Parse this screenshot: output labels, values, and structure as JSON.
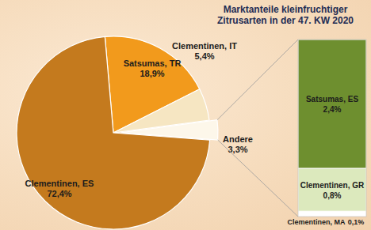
{
  "chart_data": [
    {
      "type": "pie",
      "title": "Marktanteile kleinfruchtiger Zitrusarten in der 47. KW 2020",
      "categories": [
        "Clementinen, ES",
        "Satsumas, TR",
        "Clementinen, IT",
        "Andere"
      ],
      "values": [
        72.4,
        18.9,
        5.4,
        3.3
      ],
      "value_labels": [
        "72,4%",
        "18,9%",
        "5,4%",
        "3,3%"
      ],
      "colors": [
        "#c47a1e",
        "#f29a1c",
        "#f6e6c2",
        "#fdf7ea"
      ],
      "data_labels": true
    },
    {
      "type": "bar",
      "stacked": true,
      "ylim": [
        0,
        3.3
      ],
      "tick_labels": false,
      "data_labels": true,
      "series": [
        {
          "name": "Satsumas, ES",
          "color": "#6e8f2f",
          "values": [
            2.4
          ],
          "value_labels": [
            "2,4%"
          ]
        },
        {
          "name": "Clementinen, GR",
          "color": "#dce9bd",
          "values": [
            0.8
          ],
          "value_labels": [
            "0,8%"
          ]
        },
        {
          "name": "Clementinen, MA",
          "color": "#ffffff",
          "values": [
            0.1
          ],
          "value_labels": [
            "0,1%"
          ]
        }
      ]
    }
  ]
}
